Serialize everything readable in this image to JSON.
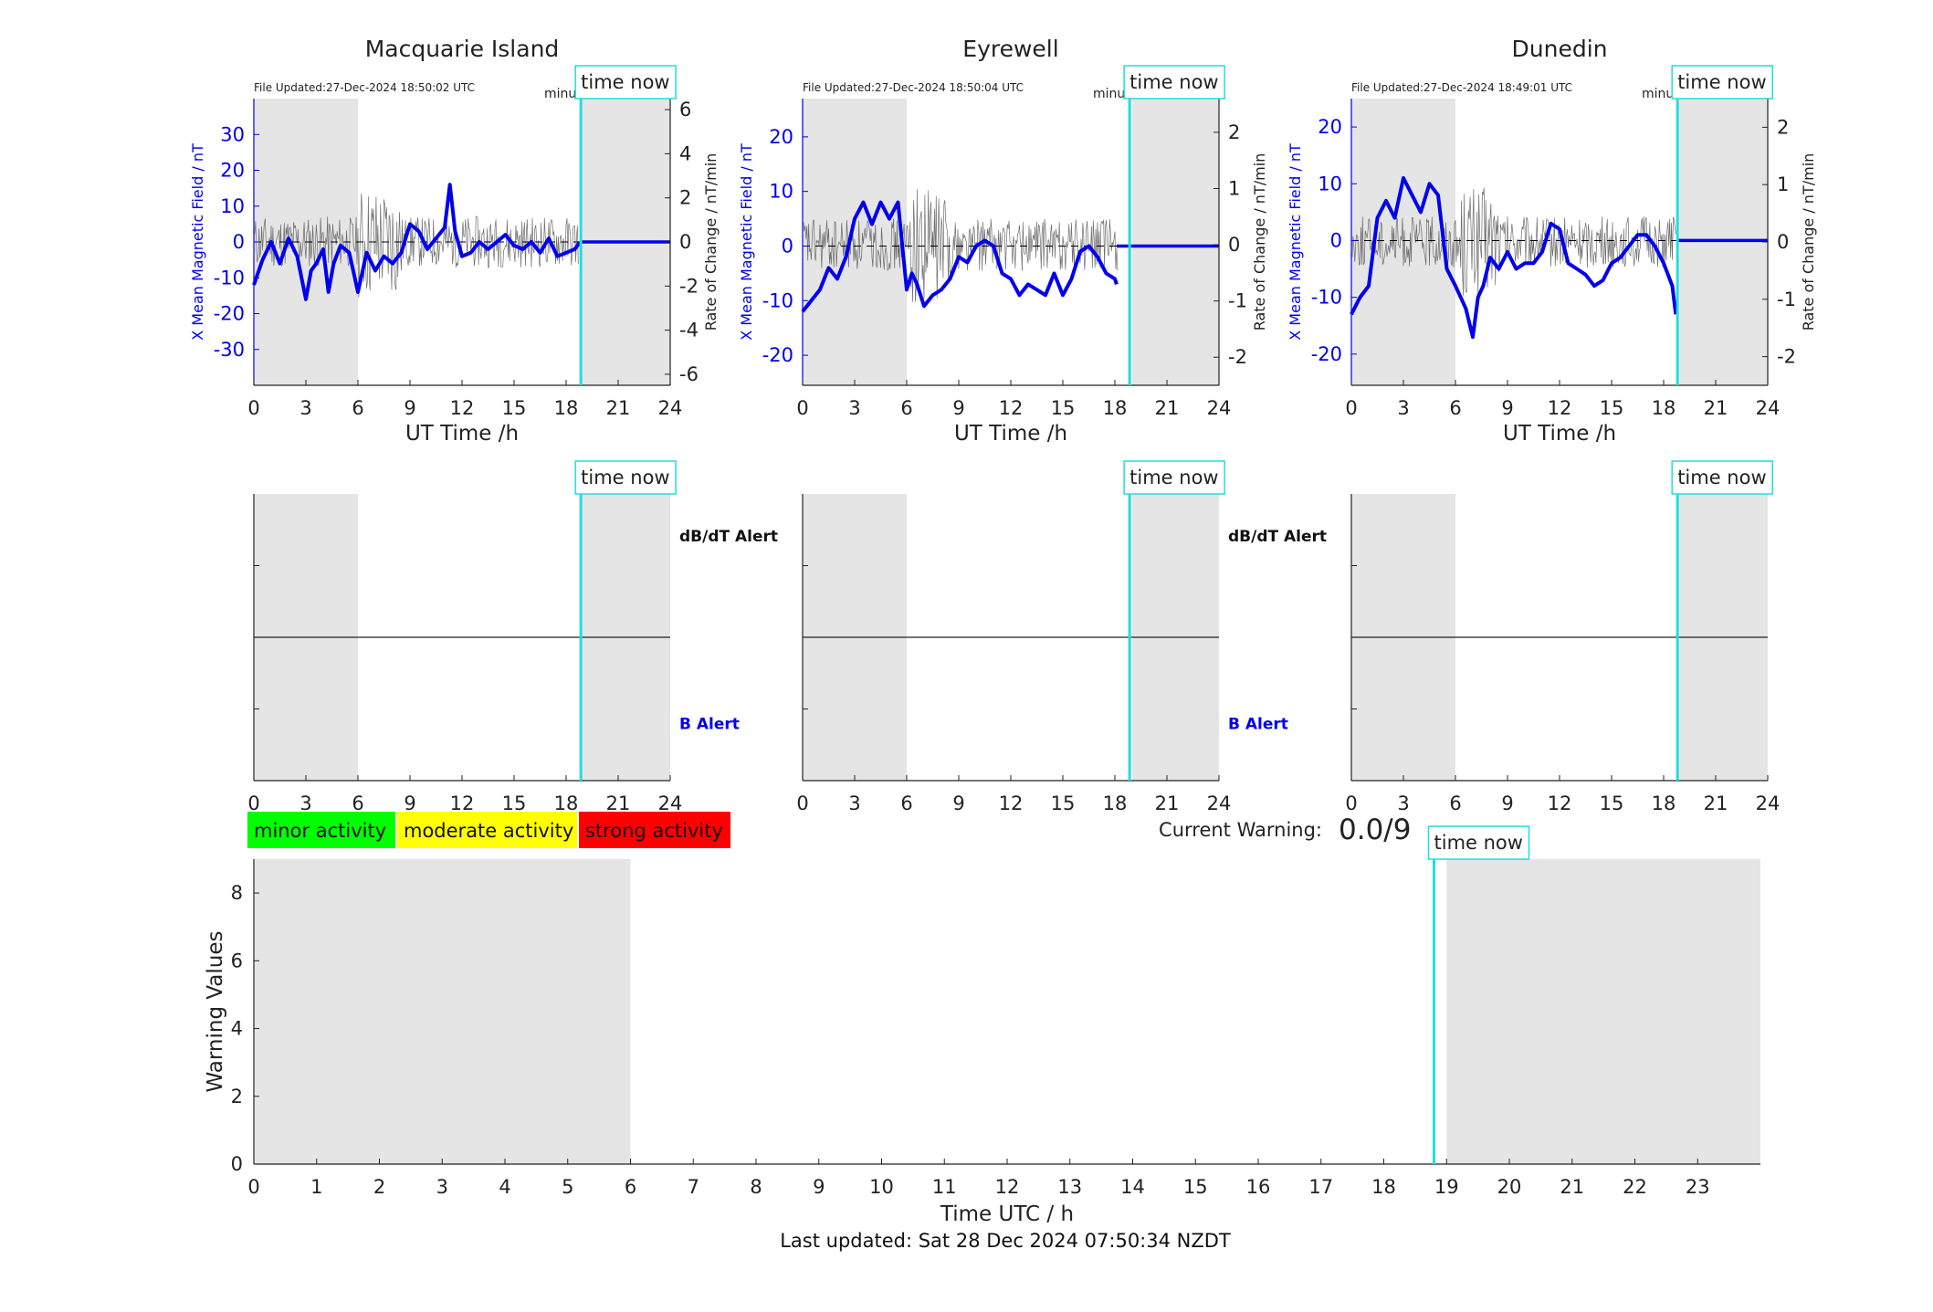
{
  "colors": {
    "field": "#0000ee",
    "rate": "#555555",
    "now": "#22dddd",
    "shade": "#e5e5e5",
    "minor": "#00ff00",
    "moderate": "#ffff00",
    "strong": "#ff0000"
  },
  "time_now_label": "time now",
  "chart_data": [
    {
      "type": "line",
      "title": "Macquarie Island",
      "file_updated": "File Updated:27-Dec-2024 18:50:02 UTC",
      "resolution_note": "minute resolution",
      "xlabel": "UT Time /h",
      "ylabel": "X Mean Magnetic Field / nT",
      "y2label": "Rate of Change / nT/min",
      "xlim": [
        0,
        24
      ],
      "xticks": [
        "0",
        "3",
        "6",
        "9",
        "12",
        "15",
        "18",
        "21",
        "24"
      ],
      "ylim": [
        -40,
        40
      ],
      "yticks": [
        "-30",
        "-20",
        "-10",
        "0",
        "10",
        "20",
        "30"
      ],
      "y2lim": [
        -6.5,
        6.5
      ],
      "y2ticks": [
        "-6",
        "-4",
        "-2",
        "0",
        "2",
        "4",
        "6"
      ],
      "night_shading": [
        [
          0,
          6
        ],
        [
          18.9,
          24
        ]
      ],
      "time_now": 18.85,
      "series": [
        {
          "axis": "left",
          "x": [
            0,
            0.5,
            1,
            1.5,
            2,
            2.5,
            3,
            3.3,
            3.6,
            4,
            4.3,
            4.6,
            5,
            5.5,
            6,
            6.5,
            7,
            7.5,
            8,
            8.5,
            9,
            9.5,
            10,
            10.5,
            11,
            11.3,
            11.6,
            12,
            12.5,
            13,
            13.5,
            14,
            14.5,
            15,
            15.5,
            16,
            16.5,
            17,
            17.5,
            18,
            18.5,
            18.8
          ],
          "y": [
            -12,
            -5,
            0,
            -6,
            1,
            -4,
            -16,
            -8,
            -6,
            -2,
            -14,
            -6,
            -1,
            -3,
            -14,
            -3,
            -8,
            -4,
            -6,
            -3,
            5,
            3,
            -2,
            1,
            4,
            16,
            3,
            -4,
            -3,
            0,
            -2,
            0,
            2,
            -1,
            -2,
            0,
            -3,
            1,
            -4,
            -3,
            -2,
            0
          ]
        },
        {
          "axis": "left",
          "x": [
            18.85,
            24
          ],
          "y": [
            0,
            0
          ]
        }
      ]
    },
    {
      "type": "line",
      "title": "Eyrewell",
      "file_updated": "File Updated:27-Dec-2024 18:50:04 UTC",
      "resolution_note": "minute resolution",
      "xlabel": "UT Time /h",
      "ylabel": "X Mean Magnetic Field / nT",
      "y2label": "Rate of Change / nT/min",
      "xlim": [
        0,
        24
      ],
      "xticks": [
        "0",
        "3",
        "6",
        "9",
        "12",
        "15",
        "18",
        "21",
        "24"
      ],
      "ylim": [
        -25.5,
        27
      ],
      "yticks": [
        "-20",
        "-10",
        "0",
        "10",
        "20"
      ],
      "y2lim": [
        -2.5,
        2.6
      ],
      "y2ticks": [
        "-2",
        "-1",
        "0",
        "1",
        "2"
      ],
      "night_shading": [
        [
          0,
          6
        ],
        [
          19,
          24
        ]
      ],
      "time_now": 18.85,
      "series": [
        {
          "axis": "left",
          "x": [
            0,
            0.5,
            1,
            1.5,
            2,
            2.5,
            3,
            3.5,
            4,
            4.5,
            5,
            5.5,
            6,
            6.3,
            6.6,
            7,
            7.5,
            8,
            8.5,
            9,
            9.5,
            10,
            10.5,
            11,
            11.5,
            12,
            12.5,
            13,
            13.5,
            14,
            14.5,
            15,
            15.5,
            16,
            16.5,
            17,
            17.5,
            18,
            18.1
          ],
          "y": [
            -12,
            -10,
            -8,
            -4,
            -6,
            -2,
            5,
            8,
            4,
            8,
            5,
            8,
            -8,
            -5,
            -7,
            -11,
            -9,
            -8,
            -6,
            -2,
            -3,
            0,
            1,
            0,
            -5,
            -6,
            -9,
            -7,
            -8,
            -9,
            -5,
            -9,
            -6,
            -1,
            0,
            -2,
            -5,
            -6,
            -7
          ]
        },
        {
          "axis": "left",
          "x": [
            18.1,
            18.4,
            24
          ],
          "y": [
            0,
            0,
            0
          ]
        }
      ]
    },
    {
      "type": "line",
      "title": "Dunedin",
      "file_updated": "File Updated:27-Dec-2024 18:49:01 UTC",
      "resolution_note": "minute resolution",
      "xlabel": "UT Time /h",
      "ylabel": "X Mean Magnetic Field / nT",
      "y2label": "Rate of Change / nT/min",
      "xlim": [
        0,
        24
      ],
      "xticks": [
        "0",
        "3",
        "6",
        "9",
        "12",
        "15",
        "18",
        "21",
        "24"
      ],
      "ylim": [
        -25.5,
        25
      ],
      "yticks": [
        "-20",
        "-10",
        "0",
        "10",
        "20"
      ],
      "y2lim": [
        -2.5,
        2.5
      ],
      "y2ticks": [
        "-2",
        "-1",
        "0",
        "1",
        "2"
      ],
      "night_shading": [
        [
          0,
          6
        ],
        [
          18.9,
          24
        ]
      ],
      "time_now": 18.8,
      "series": [
        {
          "axis": "left",
          "x": [
            0,
            0.5,
            1,
            1.5,
            2,
            2.5,
            3,
            3.5,
            4,
            4.5,
            5,
            5.5,
            6,
            6.3,
            6.6,
            7,
            7.3,
            7.6,
            8,
            8.5,
            9,
            9.5,
            10,
            10.5,
            11,
            11.5,
            12,
            12.5,
            13,
            13.5,
            14,
            14.5,
            15,
            15.5,
            16,
            16.5,
            17,
            17.5,
            18,
            18.5,
            18.7
          ],
          "y": [
            -13,
            -10,
            -8,
            4,
            7,
            4,
            11,
            8,
            5,
            10,
            8,
            -5,
            -8,
            -10,
            -12,
            -17,
            -10,
            -8,
            -3,
            -5,
            -2,
            -5,
            -4,
            -4,
            -2,
            3,
            2,
            -4,
            -5,
            -6,
            -8,
            -7,
            -4,
            -3,
            -1,
            1,
            1,
            -1,
            -4,
            -8,
            -13
          ]
        },
        {
          "axis": "left",
          "x": [
            18.75,
            24
          ],
          "y": [
            0,
            0
          ]
        }
      ]
    },
    {
      "type": "bar",
      "station": "Macquarie Island",
      "xlim": [
        0,
        24
      ],
      "xticks": [
        "0",
        "3",
        "6",
        "9",
        "12",
        "15",
        "18",
        "21",
        "24"
      ],
      "upper_label": "dB/dT Alert",
      "lower_label": "B Alert",
      "night_shading": [
        [
          0,
          6
        ],
        [
          18.9,
          24
        ]
      ],
      "time_now": 18.85,
      "values": []
    },
    {
      "type": "bar",
      "station": "Eyrewell",
      "xlim": [
        0,
        24
      ],
      "xticks": [
        "0",
        "3",
        "6",
        "9",
        "12",
        "15",
        "18",
        "21",
        "24"
      ],
      "upper_label": "dB/dT Alert",
      "lower_label": "B Alert",
      "night_shading": [
        [
          0,
          6
        ],
        [
          19,
          24
        ]
      ],
      "time_now": 18.85,
      "values": []
    },
    {
      "type": "bar",
      "station": "Dunedin",
      "xlim": [
        0,
        24
      ],
      "xticks": [
        "0",
        "3",
        "6",
        "9",
        "12",
        "15",
        "18",
        "21",
        "24"
      ],
      "night_shading": [
        [
          0,
          6
        ],
        [
          18.9,
          24
        ]
      ],
      "time_now": 18.8,
      "values": []
    },
    {
      "type": "bar",
      "xlabel": "Time UTC / h",
      "ylabel": "Warning Values",
      "xlim": [
        0,
        24
      ],
      "xticks": [
        "0",
        "1",
        "2",
        "3",
        "4",
        "5",
        "6",
        "7",
        "8",
        "9",
        "10",
        "11",
        "12",
        "13",
        "14",
        "15",
        "16",
        "17",
        "18",
        "19",
        "20",
        "21",
        "22",
        "23"
      ],
      "ylim": [
        0,
        9
      ],
      "yticks": [
        "0",
        "2",
        "4",
        "6",
        "8"
      ],
      "night_shading": [
        [
          0,
          6
        ],
        [
          19,
          24
        ]
      ],
      "time_now": 18.8,
      "values": []
    }
  ],
  "legend": [
    {
      "label": "minor activity",
      "color": "#00ff00"
    },
    {
      "label": "moderate activity",
      "color": "#ffff00"
    },
    {
      "label": "strong activity",
      "color": "#ff0000"
    }
  ],
  "current_warning": {
    "label": "Current Warning:",
    "value": "0.0/9"
  },
  "footer": "Last updated: Sat 28 Dec 2024 07:50:34 NZDT"
}
